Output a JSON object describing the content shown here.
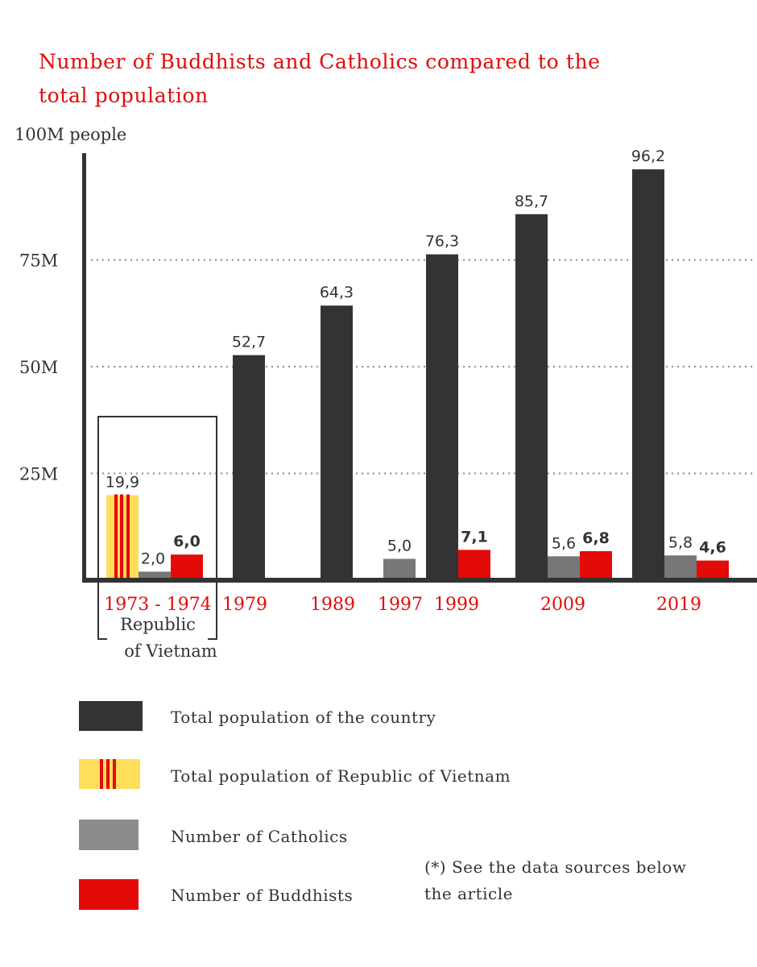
{
  "colors": {
    "total": "#333333",
    "rvn_yellow": "#ffde59",
    "rvn_stripe": "#e30a0a",
    "catholics": "#777777",
    "catholics_legend": "#8c8c8c",
    "buddhists": "#e30a0a",
    "title": "#e30a0a",
    "grid": "#999999"
  },
  "chart_data": {
    "type": "bar",
    "title_lines": [
      "Number of Buddhists and Catholics compared to the",
      "total population"
    ],
    "ylabel": "100M people",
    "ylim": [
      0,
      100
    ],
    "yticks": [
      {
        "value": 25,
        "label": "25M"
      },
      {
        "value": 50,
        "label": "50M"
      },
      {
        "value": 75,
        "label": "75M"
      }
    ],
    "grid": "dotted horizontal",
    "categories": [
      "1973 - 1974",
      "1979",
      "1989",
      "1997",
      "1999",
      "2009",
      "2019"
    ],
    "category_note": [
      "Republic",
      "of Vietnam"
    ],
    "series": [
      {
        "name": "Total population of the country",
        "key": "total",
        "values": [
          null,
          52.7,
          64.3,
          null,
          76.3,
          85.7,
          96.2
        ],
        "labels": [
          null,
          "52,7",
          "64,3",
          null,
          "76,3",
          "85,7",
          "96,2"
        ]
      },
      {
        "name": "Total population of Republic of Vietnam",
        "key": "rvn",
        "values": [
          19.9,
          null,
          null,
          null,
          null,
          null,
          null
        ],
        "labels": [
          "19,9",
          null,
          null,
          null,
          null,
          null,
          null
        ]
      },
      {
        "name": "Number of Catholics",
        "key": "catholics",
        "values": [
          2.0,
          null,
          null,
          5.0,
          null,
          5.6,
          5.8
        ],
        "labels": [
          "2,0",
          null,
          null,
          "5,0",
          null,
          "5,6",
          "5,8"
        ]
      },
      {
        "name": "Number of Buddhists",
        "key": "buddhists",
        "values": [
          6.0,
          null,
          null,
          null,
          7.1,
          6.8,
          4.6
        ],
        "labels": [
          "6,0",
          null,
          null,
          null,
          "7,1",
          "6,8",
          "4,6"
        ]
      }
    ],
    "legend_position": "bottom",
    "footnote_lines": [
      "(*) See the data sources below",
      "the article"
    ]
  }
}
